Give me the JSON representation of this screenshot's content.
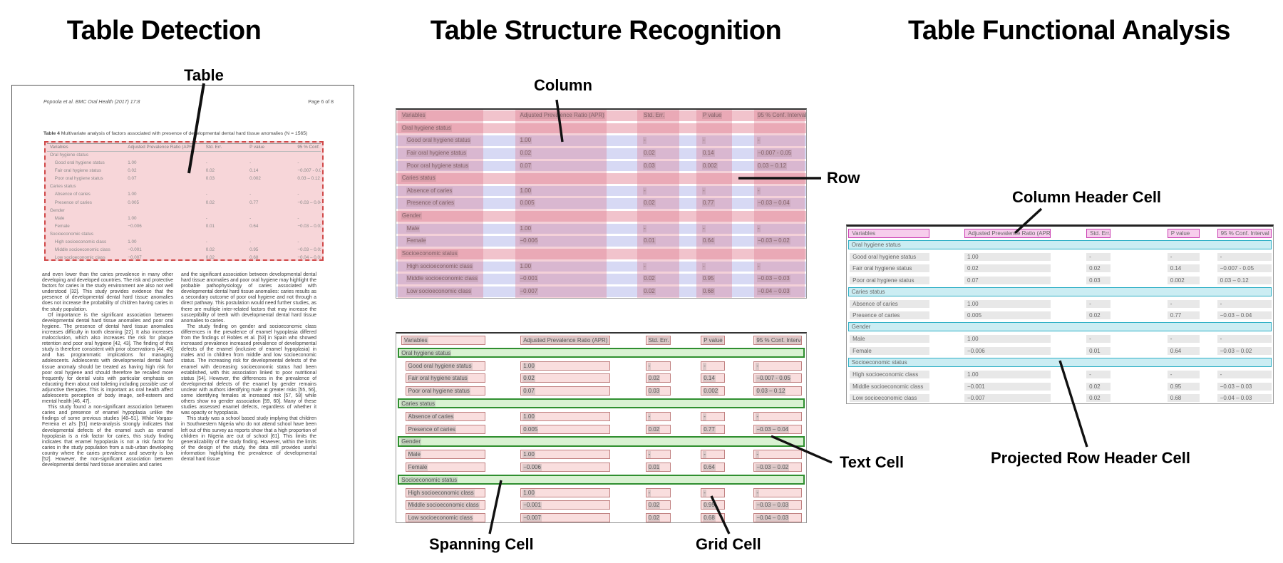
{
  "titles": {
    "detection": "Table Detection",
    "structure": "Table Structure Recognition",
    "functional": "Table Functional Analysis"
  },
  "callouts": {
    "table": "Table",
    "column": "Column",
    "row": "Row",
    "spanning_cell": "Spanning Cell",
    "grid_cell": "Grid Cell",
    "text_cell": "Text Cell",
    "column_header_cell": "Column Header Cell",
    "projected_row_header_cell": "Projected Row Header Cell"
  },
  "document": {
    "header_left": "Popoola et al. BMC Oral Health  (2017) 17:8",
    "header_right": "Page 6 of 8",
    "caption_label": "Table 4",
    "caption_text": " Multivariate analysis of factors associated with presence of developmental dental hard tissue anomalies (N = 1565)",
    "body_left": [
      "and even lower than the caries prevalence in many other developing and developed countries. The risk and protective factors for caries in the study environment are also not well understood [32]. This study provides evidence that the presence of developmental dental hard tissue anomalies does not increase the probability of children having caries in the study population.",
      "Of importance is the significant association between developmental dental hard tissue anomalies and poor oral hygiene. The presence of dental hard tissue anomalies increases difficulty in tooth cleaning [22]. It also increases malocclusion, which also increases the risk for plaque retention and poor oral hygiene [42, 43]. The finding of this study is therefore consistent with prior observations [44, 45] and has programmatic implications for managing adolescents. Adolescents with developmental dental hard tissue anomaly should be treated as having high risk for poor oral hygiene and should therefore be recalled more frequently for dental visits with particular emphasis on educating them about oral toileting including possible use of adjunctive therapies. This is important as oral health affect adolescents perception of body image, self-esteem and mental health [46, 47].",
      "This study found a non-significant association between caries and presence of enamel hypoplasia unlike the findings of some previous studies [48–51]. While Vargas-Ferreira et al's [51] meta-analysis strongly indicates that developmental defects of the enamel such as enamel hypoplasia is a risk factor for caries, this study finding indicates that enamel hypoplasia is not a risk factor for caries in the study population from a sub-urban developing country where the caries prevalence and severity is low [52]. However, the non-significant association between developmental dental hard tissue anomalies and caries"
    ],
    "body_right": [
      "and the significant association between developmental dental hard tissue anomalies and poor oral hygiene may highlight the probable pathophysiology of caries associated with developmental dental hard tissue anomalies: caries results as a secondary outcome of poor oral hygiene and not through a direct pathway. This postulation would need further studies, as there are multiple inter-related factors that may increase the susceptibility of teeth with developmental dental hard tissue anomalies to caries.",
      "The study finding on gender and socioeconomic class differences in the prevalence of enamel hypoplasia differed from the findings of Robles et al. [53] in Spain who showed increased prevalence increased prevalence of developmental defects of the enamel (inclusive of enamel hypoplasia) in males and in children from middle and low socioeconomic status. The increasing risk for developmental defects of the enamel with decreasing socioeconomic status had been established, with this association linked to poor nutritional status [54]. However, the differences in the prevalence of developmental defects of the enamel by gender remains unclear with authors identifying male at greater risks [55, 56], some identifying females at increased risk [57, 58] while others show no gender association [59, 60]. Many of these studies assessed enamel defects, regardless of whether it was opacity or hypoplasia.",
      "This study was a school based study implying that children in Southwestern Nigeria who do not attend school have been left out of this survey as reports show that a high proportion of children in Nigeria are out of school [61]. This limits the generalizability of the study finding. However, within the limits of the design of the study, the data still provides useful information highlighting the prevalence of developmental dental hard tissue"
    ]
  },
  "table": {
    "columns": [
      "Variables",
      "Adjusted Prevalence Ratio (APR)",
      "Std. Err.",
      "P value",
      "95 % Conf. Interval"
    ],
    "rows": [
      {
        "type": "section",
        "label": "Oral hygiene status"
      },
      {
        "type": "data",
        "label": "Good oral hygiene status",
        "apr": "1.00",
        "se": "-",
        "p": "-",
        "ci": "-"
      },
      {
        "type": "data",
        "label": "Fair oral hygiene status",
        "apr": "0.02",
        "se": "0.02",
        "p": "0.14",
        "ci": "−0.007 - 0.05"
      },
      {
        "type": "data",
        "label": "Poor oral hygiene status",
        "apr": "0.07",
        "se": "0.03",
        "p": "0.002",
        "ci": "0.03 – 0.12"
      },
      {
        "type": "section",
        "label": "Caries status"
      },
      {
        "type": "data",
        "label": "Absence of caries",
        "apr": "1.00",
        "se": "-",
        "p": "-",
        "ci": "-"
      },
      {
        "type": "data",
        "label": "Presence of caries",
        "apr": "0.005",
        "se": "0.02",
        "p": "0.77",
        "ci": "−0.03 – 0.04"
      },
      {
        "type": "section",
        "label": "Gender"
      },
      {
        "type": "data",
        "label": "Male",
        "apr": "1.00",
        "se": "-",
        "p": "-",
        "ci": "-"
      },
      {
        "type": "data",
        "label": "Female",
        "apr": "−0.006",
        "se": "0.01",
        "p": "0.64",
        "ci": "−0.03 – 0.02"
      },
      {
        "type": "section",
        "label": "Socioeconomic status"
      },
      {
        "type": "data",
        "label": "High socioeconomic class",
        "apr": "1.00",
        "se": "-",
        "p": "-",
        "ci": "-"
      },
      {
        "type": "data",
        "label": "Middle socioeconomic class",
        "apr": "−0.001",
        "se": "0.02",
        "p": "0.95",
        "ci": "−0.03 – 0.03"
      },
      {
        "type": "data",
        "label": "Low socioeconomic class",
        "apr": "−0.007",
        "se": "0.02",
        "p": "0.68",
        "ci": "−0.04 – 0.03"
      }
    ]
  },
  "colors": {
    "detection_fill": "#f5ccd0",
    "detection_border": "#d04848",
    "row_overlay": "#a6aae6",
    "column_overlay": "#de738a",
    "grid_cell_fill": "#f9dede",
    "grid_cell_border": "#c08080",
    "spanning_cell_fill": "#d9f2d2",
    "spanning_cell_border": "#2f8f2f",
    "column_header_fill": "#f7cdec",
    "column_header_border": "#cb3fb3",
    "projected_row_header_fill": "#cbedf3",
    "projected_row_header_border": "#2fb0c6",
    "text_highlight": "#8a8a8a",
    "line_color": "#111111"
  }
}
